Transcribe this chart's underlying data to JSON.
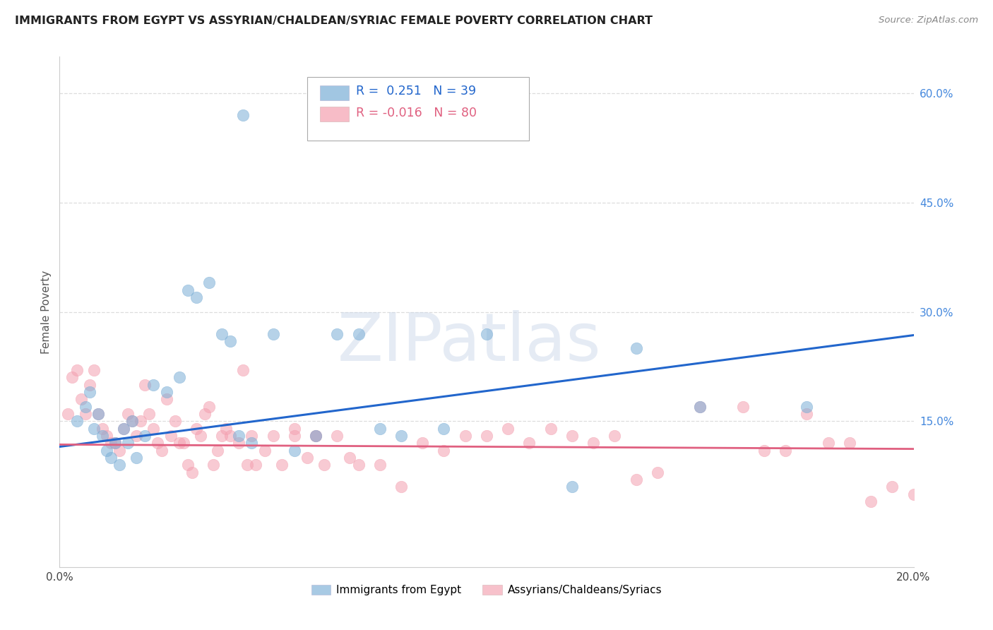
{
  "title": "IMMIGRANTS FROM EGYPT VS ASSYRIAN/CHALDEAN/SYRIAC FEMALE POVERTY CORRELATION CHART",
  "source": "Source: ZipAtlas.com",
  "ylabel": "Female Poverty",
  "xlim": [
    0.0,
    0.2
  ],
  "ylim": [
    -0.05,
    0.65
  ],
  "background_color": "#ffffff",
  "blue_color": "#7aaed6",
  "pink_color": "#f4a0b0",
  "blue_line_color": "#2266cc",
  "pink_line_color": "#e06080",
  "watermark_text": "ZIPatlas",
  "legend_R1": "0.251",
  "legend_N1": "39",
  "legend_R2": "-0.016",
  "legend_N2": "80",
  "legend_label1": "Immigrants from Egypt",
  "legend_label2": "Assyrians/Chaldeans/Syriacs",
  "blue_trend_x": [
    0.0,
    0.2
  ],
  "blue_trend_y": [
    0.115,
    0.268
  ],
  "pink_trend_x": [
    0.0,
    0.2
  ],
  "pink_trend_y": [
    0.118,
    0.112
  ],
  "blue_x": [
    0.004,
    0.006,
    0.007,
    0.008,
    0.009,
    0.01,
    0.011,
    0.012,
    0.013,
    0.014,
    0.015,
    0.016,
    0.017,
    0.018,
    0.02,
    0.022,
    0.025,
    0.028,
    0.03,
    0.032,
    0.035,
    0.038,
    0.04,
    0.042,
    0.045,
    0.05,
    0.055,
    0.06,
    0.065,
    0.07,
    0.075,
    0.08,
    0.09,
    0.1,
    0.12,
    0.135,
    0.15,
    0.175,
    0.043
  ],
  "blue_y": [
    0.15,
    0.17,
    0.19,
    0.14,
    0.16,
    0.13,
    0.11,
    0.1,
    0.12,
    0.09,
    0.14,
    0.12,
    0.15,
    0.1,
    0.13,
    0.2,
    0.19,
    0.21,
    0.33,
    0.32,
    0.34,
    0.27,
    0.26,
    0.13,
    0.12,
    0.27,
    0.11,
    0.13,
    0.27,
    0.27,
    0.14,
    0.13,
    0.14,
    0.27,
    0.06,
    0.25,
    0.17,
    0.17,
    0.57
  ],
  "pink_x": [
    0.002,
    0.003,
    0.004,
    0.005,
    0.006,
    0.007,
    0.008,
    0.009,
    0.01,
    0.011,
    0.012,
    0.013,
    0.014,
    0.015,
    0.016,
    0.017,
    0.018,
    0.019,
    0.02,
    0.021,
    0.022,
    0.023,
    0.024,
    0.025,
    0.026,
    0.027,
    0.028,
    0.029,
    0.03,
    0.031,
    0.032,
    0.033,
    0.034,
    0.035,
    0.036,
    0.037,
    0.038,
    0.039,
    0.04,
    0.042,
    0.043,
    0.044,
    0.045,
    0.046,
    0.048,
    0.05,
    0.052,
    0.055,
    0.058,
    0.06,
    0.062,
    0.065,
    0.068,
    0.07,
    0.075,
    0.08,
    0.085,
    0.09,
    0.095,
    0.1,
    0.105,
    0.11,
    0.115,
    0.12,
    0.125,
    0.13,
    0.135,
    0.14,
    0.15,
    0.16,
    0.165,
    0.17,
    0.175,
    0.18,
    0.185,
    0.19,
    0.195,
    0.2,
    0.055,
    0.06
  ],
  "pink_y": [
    0.16,
    0.21,
    0.22,
    0.18,
    0.16,
    0.2,
    0.22,
    0.16,
    0.14,
    0.13,
    0.12,
    0.12,
    0.11,
    0.14,
    0.16,
    0.15,
    0.13,
    0.15,
    0.2,
    0.16,
    0.14,
    0.12,
    0.11,
    0.18,
    0.13,
    0.15,
    0.12,
    0.12,
    0.09,
    0.08,
    0.14,
    0.13,
    0.16,
    0.17,
    0.09,
    0.11,
    0.13,
    0.14,
    0.13,
    0.12,
    0.22,
    0.09,
    0.13,
    0.09,
    0.11,
    0.13,
    0.09,
    0.14,
    0.1,
    0.13,
    0.09,
    0.13,
    0.1,
    0.09,
    0.09,
    0.06,
    0.12,
    0.11,
    0.13,
    0.13,
    0.14,
    0.12,
    0.14,
    0.13,
    0.12,
    0.13,
    0.07,
    0.08,
    0.17,
    0.17,
    0.11,
    0.11,
    0.16,
    0.12,
    0.12,
    0.04,
    0.06,
    0.05,
    0.13,
    0.13
  ]
}
